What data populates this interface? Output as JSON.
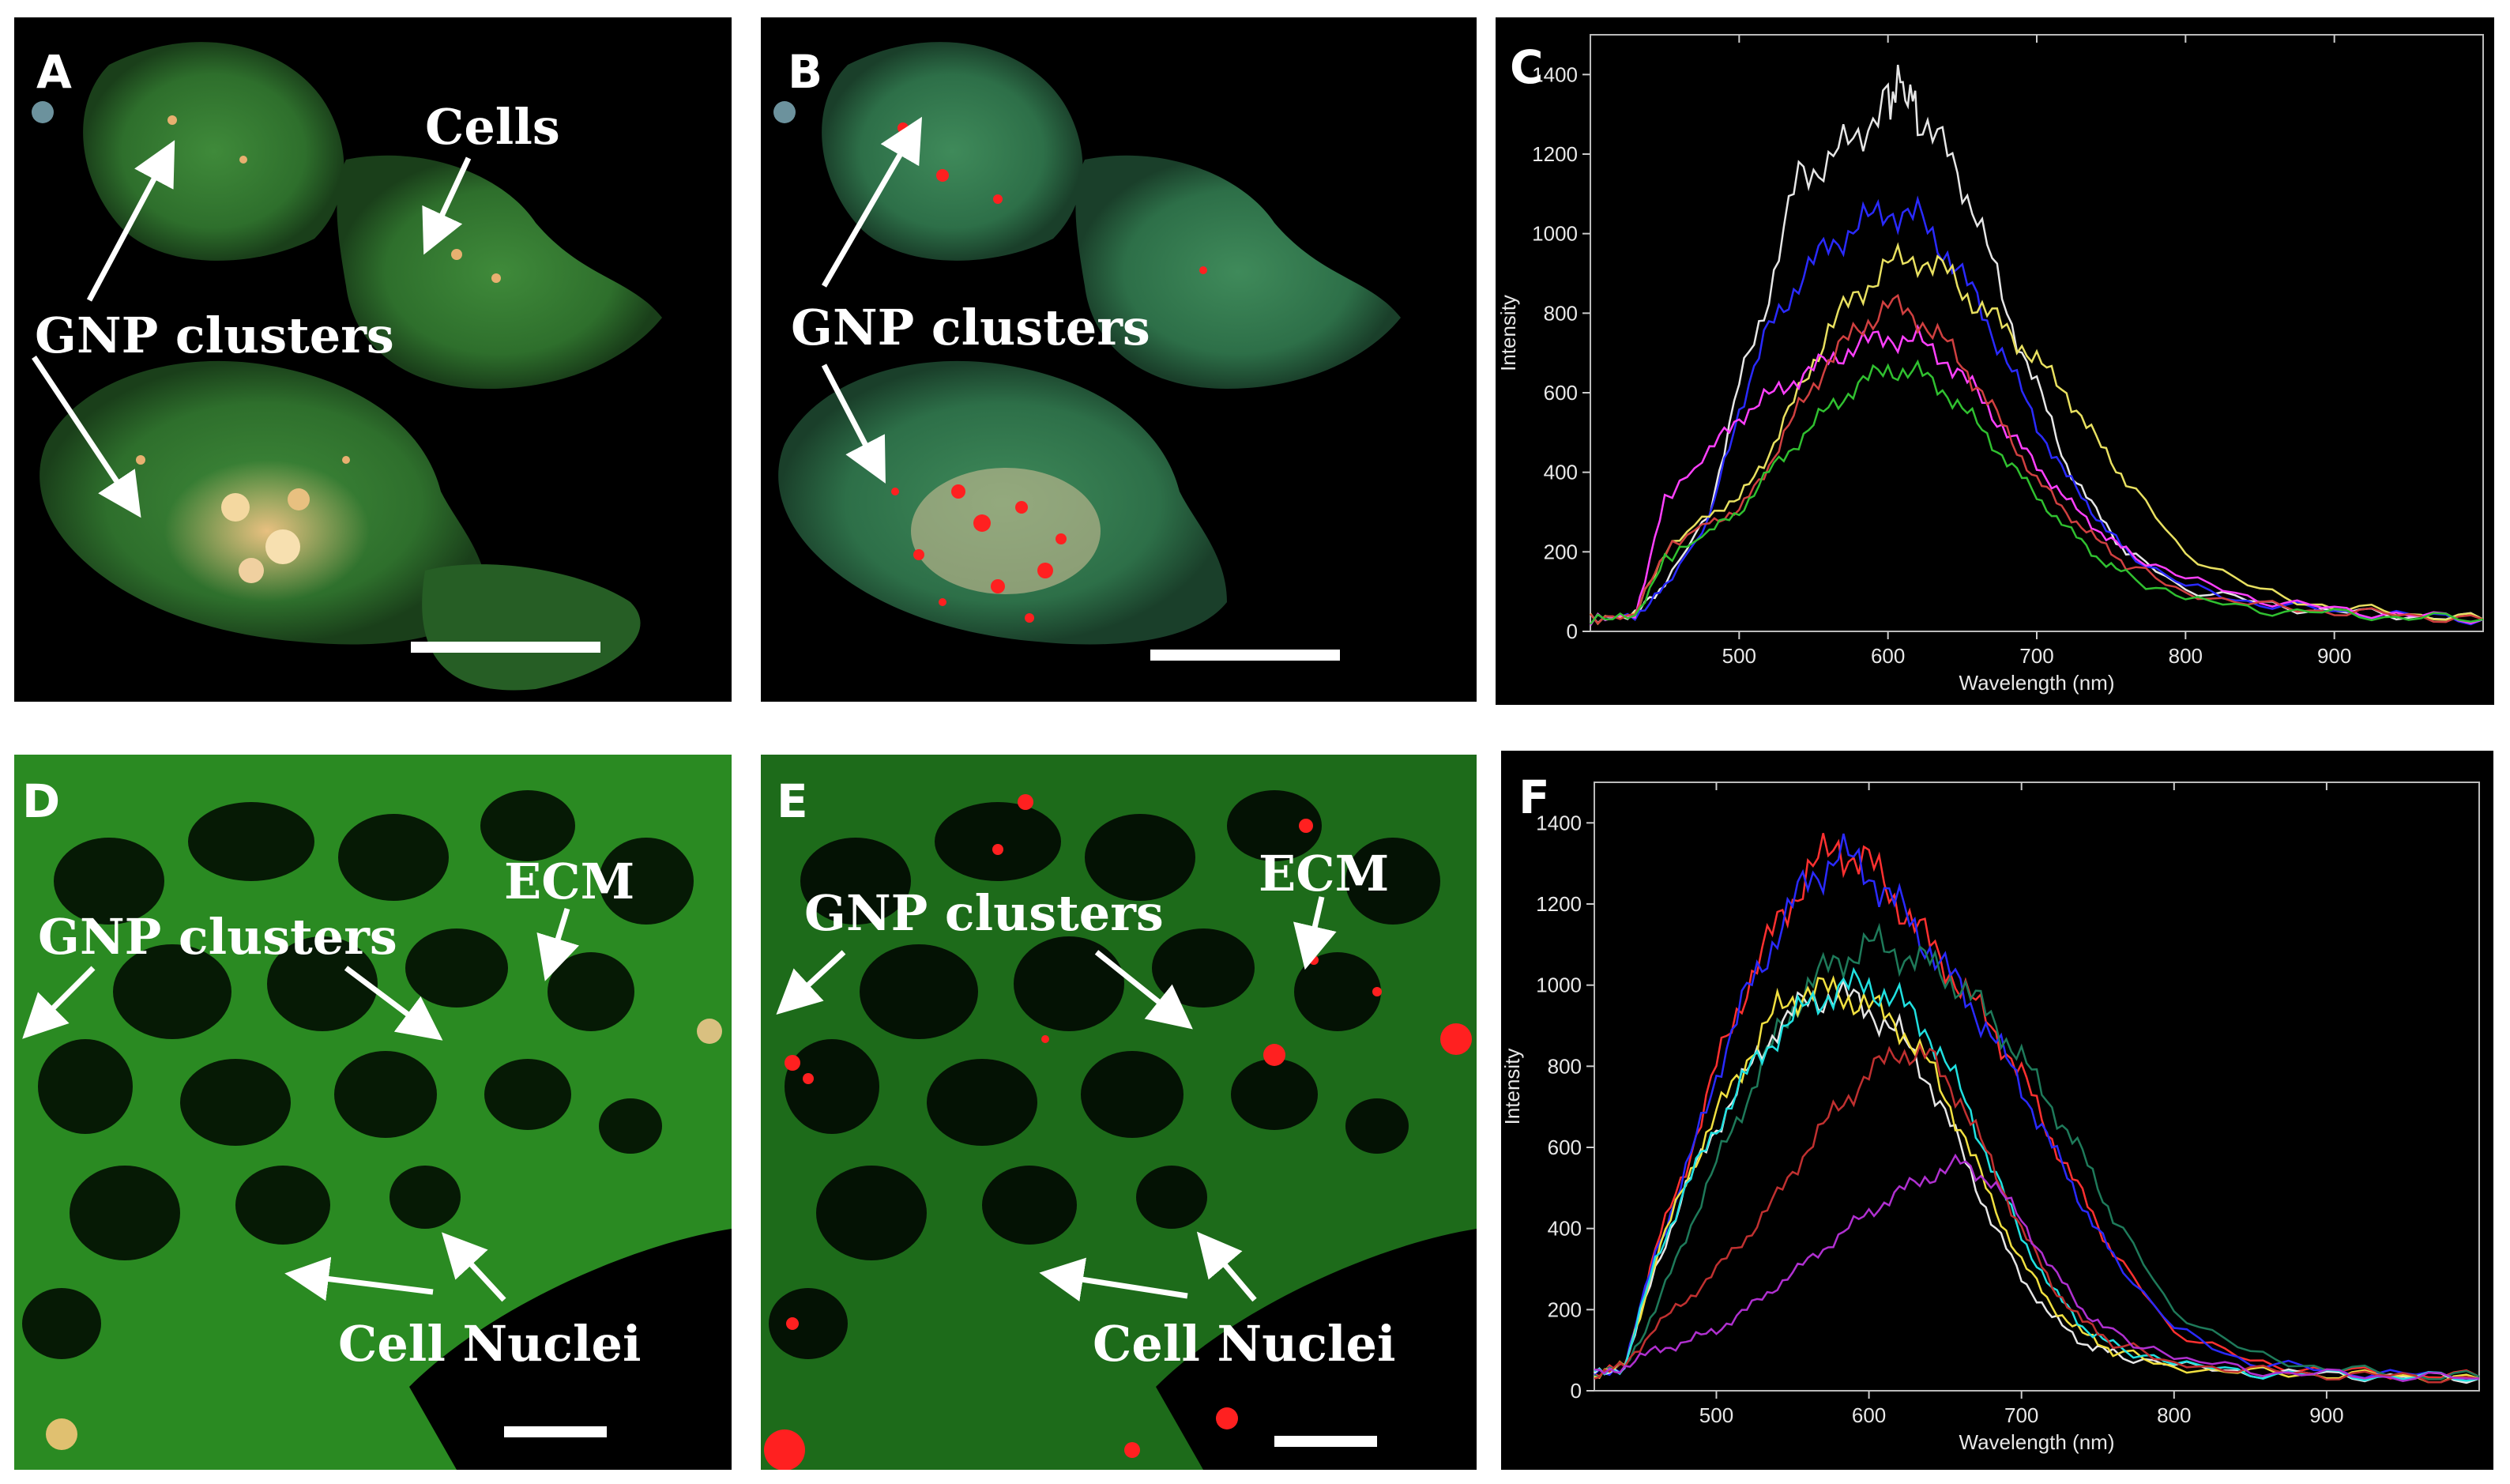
{
  "panels": {
    "A": {
      "letter": "A",
      "labels": {
        "cells": "Cells",
        "gnp": "GNP clusters"
      }
    },
    "B": {
      "letter": "B",
      "labels": {
        "gnp": "GNP clusters"
      }
    },
    "C": {
      "letter": "C"
    },
    "D": {
      "letter": "D",
      "labels": {
        "gnp": "GNP clusters",
        "ecm": "ECM",
        "nuclei": "Cell Nuclei"
      }
    },
    "E": {
      "letter": "E",
      "labels": {
        "gnp": "GNP clusters",
        "ecm": "ECM",
        "nuclei": "Cell Nuclei"
      }
    },
    "F": {
      "letter": "F"
    }
  },
  "chart_data": [
    {
      "panel": "C",
      "type": "line",
      "xlabel": "Wavelength (nm)",
      "ylabel": "Intensity",
      "xlim": [
        400,
        1000
      ],
      "ylim": [
        0,
        1500
      ],
      "xticks": [
        500,
        600,
        700,
        800,
        900
      ],
      "yticks": [
        0,
        200,
        400,
        600,
        800,
        1000,
        1200,
        1400
      ],
      "series": [
        {
          "color": "#e6e6e6",
          "x": [
            400,
            430,
            450,
            480,
            500,
            520,
            540,
            560,
            580,
            600,
            610,
            620,
            640,
            660,
            680,
            700,
            720,
            740,
            760,
            800,
            850,
            900,
            950,
            1000
          ],
          "y": [
            30,
            40,
            120,
            300,
            620,
            850,
            1150,
            1180,
            1250,
            1340,
            1380,
            1300,
            1200,
            1050,
            800,
            620,
            420,
            300,
            200,
            110,
            70,
            50,
            40,
            30
          ]
        },
        {
          "color": "#2a2aff",
          "x": [
            400,
            430,
            450,
            480,
            500,
            520,
            540,
            560,
            580,
            600,
            620,
            640,
            660,
            680,
            700,
            720,
            740,
            760,
            800,
            850,
            900,
            950,
            1000
          ],
          "y": [
            30,
            40,
            110,
            280,
            560,
            760,
            880,
            970,
            1020,
            1060,
            1040,
            950,
            830,
            680,
            520,
            390,
            290,
            200,
            110,
            70,
            50,
            40,
            30
          ]
        },
        {
          "color": "#e8e060",
          "x": [
            400,
            430,
            450,
            480,
            500,
            520,
            540,
            560,
            580,
            600,
            620,
            640,
            660,
            680,
            700,
            720,
            740,
            760,
            800,
            850,
            900,
            950,
            1000
          ],
          "y": [
            30,
            40,
            200,
            300,
            330,
            450,
            600,
            760,
            850,
            920,
            940,
            900,
            820,
            760,
            680,
            600,
            480,
            380,
            200,
            100,
            60,
            45,
            30
          ]
        },
        {
          "color": "#ff40ff",
          "x": [
            400,
            430,
            450,
            480,
            500,
            520,
            540,
            560,
            580,
            600,
            620,
            640,
            660,
            680,
            700,
            720,
            740,
            760,
            800,
            850,
            900,
            950,
            1000
          ],
          "y": [
            30,
            40,
            330,
            450,
            540,
            590,
            640,
            680,
            720,
            740,
            730,
            680,
            600,
            500,
            420,
            330,
            260,
            200,
            130,
            80,
            55,
            40,
            30
          ]
        },
        {
          "color": "#d04040",
          "x": [
            400,
            430,
            450,
            480,
            500,
            520,
            540,
            560,
            580,
            600,
            620,
            640,
            660,
            680,
            700,
            720,
            740,
            760,
            800,
            850,
            900,
            950,
            1000
          ],
          "y": [
            30,
            40,
            200,
            280,
            300,
            420,
            560,
            680,
            760,
            820,
            790,
            720,
            620,
            500,
            380,
            300,
            230,
            170,
            100,
            65,
            50,
            40,
            30
          ]
        },
        {
          "color": "#30c030",
          "x": [
            400,
            430,
            450,
            480,
            500,
            520,
            540,
            560,
            580,
            600,
            620,
            640,
            660,
            680,
            700,
            720,
            740,
            760,
            800,
            850,
            900,
            950,
            1000
          ],
          "y": [
            30,
            40,
            180,
            250,
            300,
            400,
            480,
            560,
            620,
            660,
            650,
            600,
            520,
            430,
            340,
            260,
            190,
            140,
            80,
            55,
            45,
            35,
            30
          ]
        }
      ]
    },
    {
      "panel": "F",
      "type": "line",
      "xlabel": "Wavelength (nm)",
      "ylabel": "Intensity",
      "xlim": [
        420,
        1000
      ],
      "ylim": [
        0,
        1500
      ],
      "xticks": [
        500,
        600,
        700,
        800,
        900
      ],
      "yticks": [
        0,
        200,
        400,
        600,
        800,
        1000,
        1200,
        1400
      ],
      "series": [
        {
          "color": "#ff3030",
          "x": [
            420,
            440,
            460,
            480,
            500,
            520,
            540,
            560,
            580,
            600,
            620,
            640,
            660,
            680,
            700,
            720,
            740,
            760,
            800,
            850,
            900,
            950,
            1000
          ],
          "y": [
            40,
            60,
            350,
            550,
            800,
            1000,
            1150,
            1280,
            1340,
            1300,
            1200,
            1100,
            1000,
            900,
            780,
            620,
            480,
            340,
            150,
            70,
            50,
            40,
            35
          ]
        },
        {
          "color": "#2a2aff",
          "x": [
            420,
            440,
            460,
            480,
            500,
            520,
            540,
            560,
            580,
            600,
            620,
            640,
            660,
            680,
            700,
            720,
            740,
            760,
            800,
            850,
            900,
            950,
            1000
          ],
          "y": [
            40,
            60,
            340,
            540,
            780,
            980,
            1130,
            1260,
            1320,
            1280,
            1190,
            1090,
            990,
            880,
            750,
            600,
            460,
            330,
            150,
            70,
            50,
            40,
            35
          ]
        },
        {
          "color": "#1e7a5a",
          "x": [
            420,
            440,
            460,
            480,
            500,
            520,
            540,
            560,
            580,
            600,
            620,
            640,
            660,
            680,
            700,
            720,
            740,
            760,
            800,
            850,
            900,
            950,
            1000
          ],
          "y": [
            40,
            60,
            200,
            380,
            560,
            720,
            880,
            1000,
            1060,
            1100,
            1080,
            1050,
            1000,
            920,
            820,
            700,
            580,
            430,
            200,
            90,
            55,
            40,
            35
          ]
        },
        {
          "color": "#e6e6e6",
          "x": [
            420,
            440,
            460,
            480,
            500,
            520,
            540,
            560,
            580,
            600,
            620,
            640,
            660,
            680,
            700,
            720,
            740,
            760,
            800,
            850,
            900,
            950,
            1000
          ],
          "y": [
            40,
            60,
            300,
            500,
            650,
            780,
            900,
            960,
            980,
            940,
            880,
            760,
            600,
            420,
            280,
            180,
            120,
            90,
            60,
            45,
            40,
            35,
            30
          ]
        },
        {
          "color": "#f0e040",
          "x": [
            420,
            440,
            460,
            480,
            500,
            520,
            540,
            560,
            580,
            600,
            620,
            640,
            660,
            680,
            700,
            720,
            740,
            760,
            800,
            850,
            900,
            950,
            1000
          ],
          "y": [
            40,
            60,
            320,
            520,
            680,
            820,
            940,
            990,
            980,
            950,
            900,
            800,
            650,
            470,
            320,
            210,
            140,
            100,
            60,
            45,
            40,
            35,
            30
          ]
        },
        {
          "color": "#20e0e0",
          "x": [
            420,
            440,
            460,
            480,
            500,
            520,
            540,
            560,
            580,
            600,
            620,
            640,
            660,
            680,
            700,
            720,
            740,
            760,
            800,
            850,
            900,
            950,
            1000
          ],
          "y": [
            40,
            60,
            320,
            500,
            650,
            780,
            880,
            950,
            990,
            1000,
            960,
            880,
            740,
            560,
            380,
            250,
            160,
            110,
            65,
            45,
            40,
            35,
            30
          ]
        },
        {
          "color": "#c03030",
          "x": [
            420,
            440,
            460,
            480,
            500,
            520,
            540,
            560,
            580,
            600,
            620,
            640,
            660,
            680,
            700,
            720,
            740,
            760,
            800,
            850,
            900,
            950,
            1000
          ],
          "y": [
            40,
            60,
            160,
            220,
            300,
            380,
            480,
            600,
            700,
            780,
            840,
            820,
            720,
            560,
            400,
            260,
            170,
            120,
            70,
            50,
            40,
            35,
            30
          ]
        },
        {
          "color": "#b030d0",
          "x": [
            420,
            440,
            460,
            480,
            500,
            520,
            540,
            560,
            580,
            600,
            620,
            640,
            660,
            680,
            700,
            720,
            740,
            760,
            800,
            850,
            900,
            950,
            1000
          ],
          "y": [
            40,
            60,
            100,
            120,
            150,
            200,
            260,
            320,
            380,
            440,
            490,
            530,
            560,
            520,
            420,
            300,
            200,
            140,
            80,
            50,
            40,
            35,
            30
          ]
        }
      ]
    }
  ]
}
